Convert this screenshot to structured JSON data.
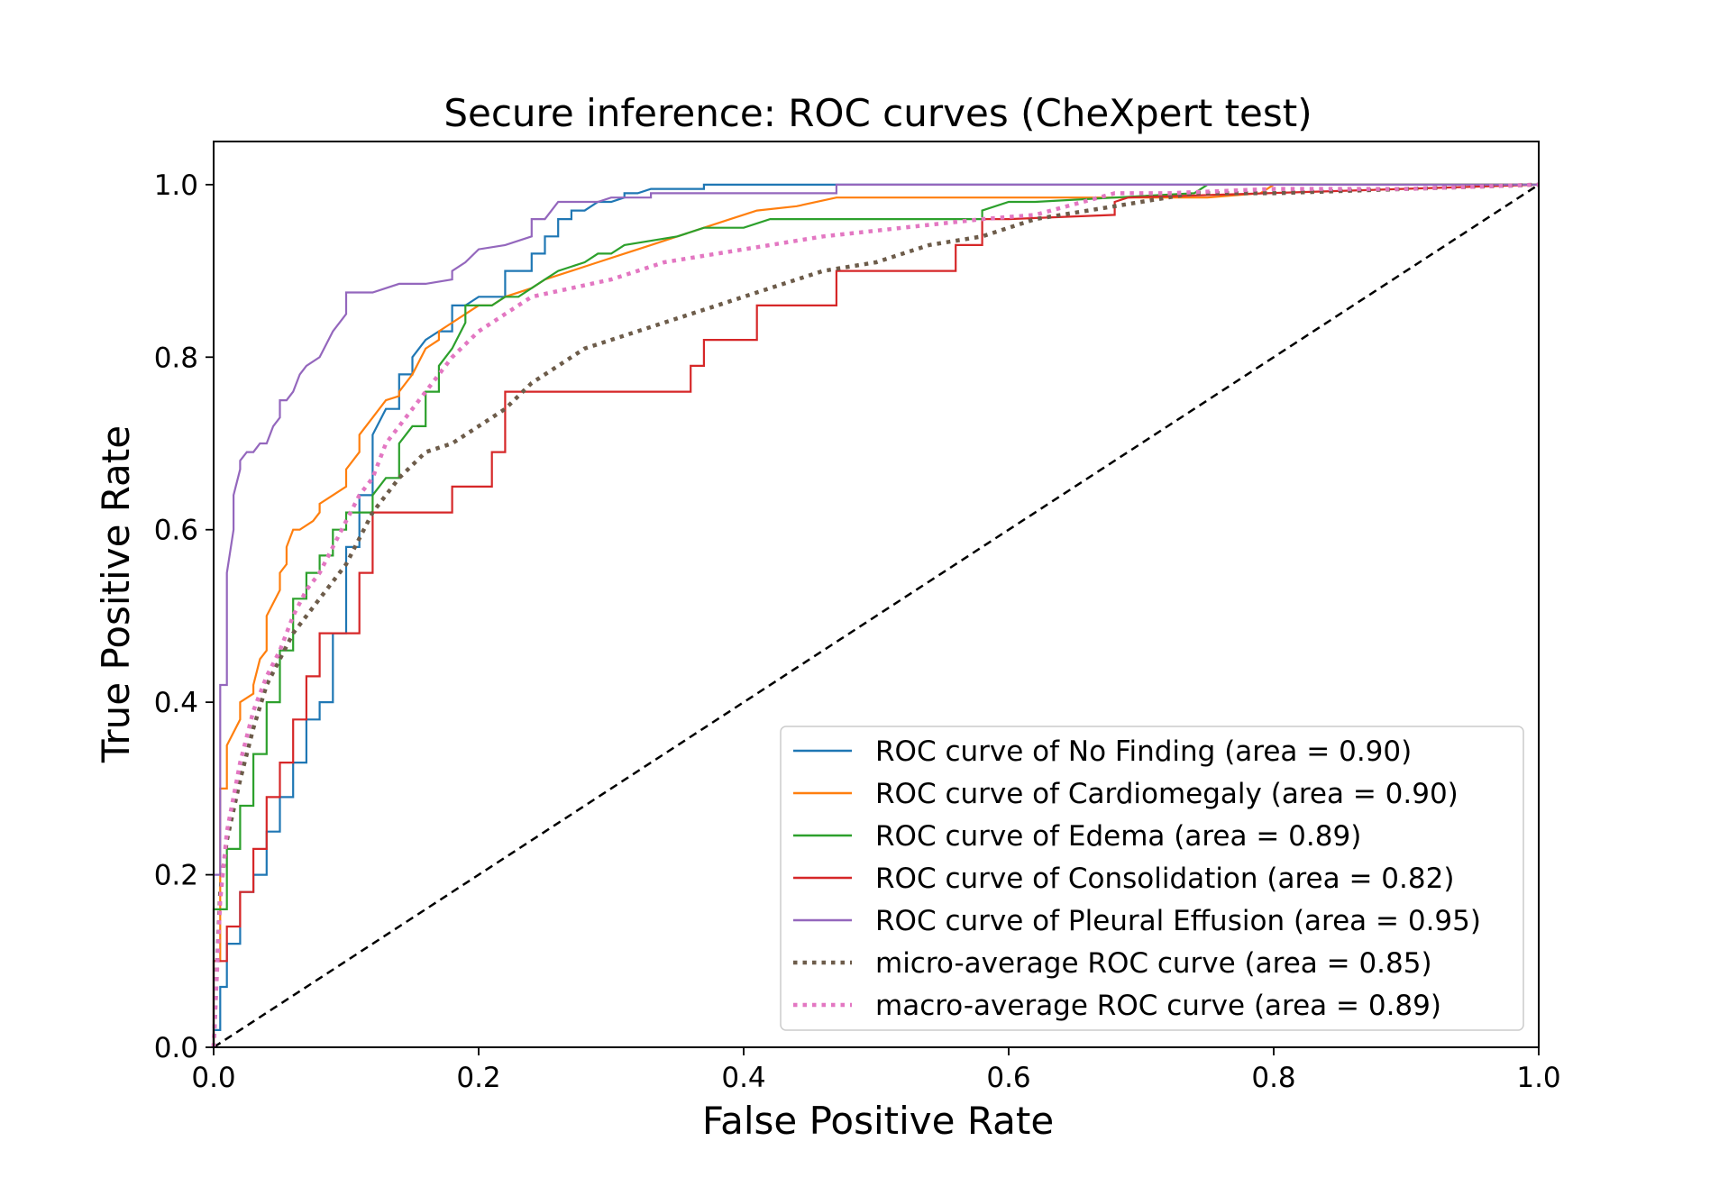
{
  "chart_data": {
    "type": "line",
    "title": "Secure inference: ROC curves (CheXpert test)",
    "xlabel": "False Positive Rate",
    "ylabel": "True Positive Rate",
    "xlim": [
      0.0,
      1.0
    ],
    "ylim": [
      0.0,
      1.05
    ],
    "xticks": [
      "0.0",
      "0.2",
      "0.4",
      "0.6",
      "0.8",
      "1.0"
    ],
    "yticks": [
      "0.0",
      "0.2",
      "0.4",
      "0.6",
      "0.8",
      "1.0"
    ],
    "grid": false,
    "legend_position": "lower-right",
    "baseline": {
      "x": [
        0,
        1
      ],
      "y": [
        0,
        1
      ],
      "color": "#000000",
      "style": "dashed"
    },
    "series": [
      {
        "name": "ROC curve of No Finding (area = 0.90)",
        "color": "#1f77b4",
        "style": "solid",
        "x": [
          0,
          0,
          0.005,
          0.005,
          0.01,
          0.01,
          0.02,
          0.02,
          0.03,
          0.03,
          0.04,
          0.04,
          0.05,
          0.05,
          0.06,
          0.06,
          0.07,
          0.07,
          0.08,
          0.08,
          0.09,
          0.09,
          0.1,
          0.1,
          0.11,
          0.11,
          0.12,
          0.12,
          0.13,
          0.14,
          0.14,
          0.15,
          0.15,
          0.16,
          0.17,
          0.18,
          0.18,
          0.19,
          0.2,
          0.22,
          0.22,
          0.24,
          0.24,
          0.25,
          0.25,
          0.26,
          0.26,
          0.27,
          0.27,
          0.28,
          0.29,
          0.3,
          0.31,
          0.31,
          0.32,
          0.33,
          0.35,
          0.37,
          0.37,
          0.4,
          0.47,
          0.47,
          0.6,
          0.8,
          1.0
        ],
        "y": [
          0,
          0.02,
          0.02,
          0.07,
          0.07,
          0.12,
          0.12,
          0.18,
          0.18,
          0.2,
          0.2,
          0.25,
          0.25,
          0.29,
          0.29,
          0.33,
          0.33,
          0.38,
          0.38,
          0.4,
          0.4,
          0.48,
          0.48,
          0.58,
          0.58,
          0.64,
          0.64,
          0.71,
          0.74,
          0.74,
          0.78,
          0.78,
          0.8,
          0.82,
          0.83,
          0.83,
          0.86,
          0.86,
          0.87,
          0.87,
          0.9,
          0.9,
          0.92,
          0.92,
          0.94,
          0.94,
          0.96,
          0.96,
          0.97,
          0.97,
          0.98,
          0.98,
          0.985,
          0.99,
          0.99,
          0.995,
          0.995,
          0.995,
          1.0,
          1.0,
          1.0,
          1.0,
          1.0,
          1.0,
          1.0
        ]
      },
      {
        "name": "ROC curve of Cardiomegaly (area = 0.90)",
        "color": "#ff7f0e",
        "style": "solid",
        "x": [
          0,
          0,
          0.005,
          0.005,
          0.01,
          0.01,
          0.02,
          0.02,
          0.03,
          0.03,
          0.035,
          0.04,
          0.04,
          0.05,
          0.05,
          0.055,
          0.055,
          0.06,
          0.065,
          0.075,
          0.08,
          0.08,
          0.09,
          0.1,
          0.1,
          0.11,
          0.11,
          0.12,
          0.13,
          0.14,
          0.14,
          0.15,
          0.16,
          0.17,
          0.17,
          0.18,
          0.19,
          0.2,
          0.21,
          0.22,
          0.24,
          0.25,
          0.27,
          0.29,
          0.31,
          0.33,
          0.35,
          0.37,
          0.39,
          0.41,
          0.44,
          0.47,
          0.5,
          0.55,
          0.6,
          0.68,
          0.75,
          0.79,
          0.8,
          1.0
        ],
        "y": [
          0,
          0.1,
          0.1,
          0.3,
          0.3,
          0.35,
          0.38,
          0.4,
          0.41,
          0.42,
          0.45,
          0.46,
          0.5,
          0.53,
          0.55,
          0.56,
          0.58,
          0.6,
          0.6,
          0.61,
          0.62,
          0.63,
          0.64,
          0.65,
          0.67,
          0.69,
          0.71,
          0.73,
          0.75,
          0.755,
          0.76,
          0.78,
          0.81,
          0.82,
          0.83,
          0.84,
          0.85,
          0.86,
          0.86,
          0.87,
          0.88,
          0.89,
          0.9,
          0.91,
          0.92,
          0.93,
          0.94,
          0.95,
          0.96,
          0.97,
          0.975,
          0.985,
          0.985,
          0.985,
          0.985,
          0.985,
          0.985,
          0.99,
          1.0,
          1.0
        ]
      },
      {
        "name": "ROC curve of Edema (area = 0.89)",
        "color": "#2ca02c",
        "style": "solid",
        "x": [
          0,
          0,
          0.01,
          0.01,
          0.02,
          0.02,
          0.03,
          0.03,
          0.04,
          0.04,
          0.05,
          0.05,
          0.06,
          0.06,
          0.07,
          0.07,
          0.08,
          0.08,
          0.09,
          0.09,
          0.1,
          0.1,
          0.12,
          0.12,
          0.13,
          0.14,
          0.14,
          0.15,
          0.16,
          0.16,
          0.17,
          0.17,
          0.18,
          0.19,
          0.19,
          0.21,
          0.22,
          0.23,
          0.24,
          0.25,
          0.26,
          0.28,
          0.29,
          0.3,
          0.31,
          0.35,
          0.37,
          0.4,
          0.42,
          0.48,
          0.52,
          0.58,
          0.58,
          0.6,
          0.62,
          0.74,
          0.74,
          0.75,
          1.0
        ],
        "y": [
          0,
          0.16,
          0.16,
          0.23,
          0.23,
          0.28,
          0.28,
          0.34,
          0.34,
          0.4,
          0.4,
          0.46,
          0.46,
          0.52,
          0.52,
          0.55,
          0.55,
          0.57,
          0.57,
          0.6,
          0.6,
          0.62,
          0.62,
          0.64,
          0.66,
          0.66,
          0.7,
          0.72,
          0.72,
          0.76,
          0.76,
          0.79,
          0.81,
          0.84,
          0.86,
          0.86,
          0.87,
          0.87,
          0.88,
          0.89,
          0.9,
          0.91,
          0.92,
          0.92,
          0.93,
          0.94,
          0.95,
          0.95,
          0.96,
          0.96,
          0.96,
          0.96,
          0.97,
          0.98,
          0.98,
          0.99,
          0.99,
          1.0,
          1.0
        ]
      },
      {
        "name": "ROC curve of Consolidation (area = 0.82)",
        "color": "#d62728",
        "style": "solid",
        "x": [
          0,
          0,
          0.01,
          0.01,
          0.02,
          0.02,
          0.03,
          0.03,
          0.04,
          0.04,
          0.05,
          0.05,
          0.06,
          0.06,
          0.07,
          0.07,
          0.08,
          0.08,
          0.09,
          0.1,
          0.11,
          0.11,
          0.12,
          0.12,
          0.18,
          0.18,
          0.21,
          0.21,
          0.22,
          0.22,
          0.36,
          0.36,
          0.37,
          0.37,
          0.41,
          0.41,
          0.47,
          0.47,
          0.56,
          0.56,
          0.58,
          0.58,
          0.6,
          0.68,
          0.68,
          0.69,
          1.0
        ],
        "y": [
          0,
          0.1,
          0.1,
          0.14,
          0.14,
          0.18,
          0.18,
          0.23,
          0.23,
          0.29,
          0.29,
          0.33,
          0.33,
          0.38,
          0.38,
          0.43,
          0.43,
          0.48,
          0.48,
          0.48,
          0.48,
          0.55,
          0.55,
          0.62,
          0.62,
          0.65,
          0.65,
          0.69,
          0.69,
          0.76,
          0.76,
          0.79,
          0.79,
          0.82,
          0.82,
          0.86,
          0.86,
          0.9,
          0.9,
          0.93,
          0.93,
          0.96,
          0.96,
          0.965,
          0.98,
          0.985,
          1.0
        ]
      },
      {
        "name": "ROC curve of Pleural Effusion (area = 0.95)",
        "color": "#9467bd",
        "style": "solid",
        "x": [
          0,
          0,
          0.005,
          0.005,
          0.01,
          0.01,
          0.015,
          0.015,
          0.02,
          0.02,
          0.025,
          0.03,
          0.035,
          0.04,
          0.045,
          0.05,
          0.05,
          0.055,
          0.06,
          0.065,
          0.07,
          0.08,
          0.09,
          0.1,
          0.1,
          0.12,
          0.14,
          0.16,
          0.18,
          0.18,
          0.19,
          0.2,
          0.22,
          0.24,
          0.24,
          0.25,
          0.26,
          0.29,
          0.3,
          0.33,
          0.33,
          0.36,
          0.37,
          0.47,
          0.47,
          0.55,
          0.7,
          0.9,
          1.0
        ],
        "y": [
          0,
          0.2,
          0.2,
          0.42,
          0.42,
          0.55,
          0.6,
          0.64,
          0.67,
          0.68,
          0.69,
          0.69,
          0.7,
          0.7,
          0.72,
          0.73,
          0.75,
          0.75,
          0.76,
          0.78,
          0.79,
          0.8,
          0.83,
          0.85,
          0.875,
          0.875,
          0.885,
          0.885,
          0.89,
          0.9,
          0.91,
          0.925,
          0.93,
          0.94,
          0.96,
          0.96,
          0.98,
          0.98,
          0.985,
          0.985,
          0.99,
          0.99,
          0.99,
          0.99,
          1.0,
          1.0,
          1.0,
          1.0,
          1.0
        ]
      },
      {
        "name": "micro-average ROC curve (area = 0.85)",
        "color": "#6d5c4a",
        "style": "dotted",
        "x": [
          0,
          0.005,
          0.01,
          0.02,
          0.03,
          0.04,
          0.05,
          0.06,
          0.08,
          0.1,
          0.12,
          0.14,
          0.16,
          0.18,
          0.2,
          0.22,
          0.24,
          0.26,
          0.28,
          0.3,
          0.34,
          0.38,
          0.42,
          0.46,
          0.5,
          0.54,
          0.58,
          0.62,
          0.66,
          0.7,
          0.74,
          0.8,
          0.9,
          1.0
        ],
        "y": [
          0,
          0.18,
          0.24,
          0.31,
          0.37,
          0.42,
          0.45,
          0.48,
          0.52,
          0.56,
          0.62,
          0.66,
          0.69,
          0.7,
          0.72,
          0.74,
          0.77,
          0.79,
          0.81,
          0.82,
          0.84,
          0.86,
          0.88,
          0.9,
          0.91,
          0.93,
          0.94,
          0.96,
          0.97,
          0.98,
          0.99,
          0.99,
          0.995,
          1.0
        ]
      },
      {
        "name": "macro-average ROC curve (area = 0.89)",
        "color": "#e377c2",
        "style": "dotted",
        "x": [
          0,
          0.005,
          0.01,
          0.02,
          0.03,
          0.04,
          0.05,
          0.06,
          0.07,
          0.08,
          0.09,
          0.1,
          0.11,
          0.12,
          0.13,
          0.14,
          0.15,
          0.16,
          0.18,
          0.2,
          0.22,
          0.24,
          0.27,
          0.3,
          0.34,
          0.38,
          0.42,
          0.46,
          0.52,
          0.58,
          0.62,
          0.68,
          0.72,
          0.8,
          0.9,
          1.0
        ],
        "y": [
          0,
          0.17,
          0.25,
          0.33,
          0.39,
          0.43,
          0.46,
          0.5,
          0.53,
          0.55,
          0.58,
          0.61,
          0.64,
          0.66,
          0.7,
          0.72,
          0.74,
          0.76,
          0.8,
          0.83,
          0.85,
          0.87,
          0.88,
          0.89,
          0.91,
          0.92,
          0.93,
          0.94,
          0.95,
          0.96,
          0.965,
          0.99,
          0.99,
          0.995,
          0.995,
          1.0
        ]
      }
    ]
  }
}
